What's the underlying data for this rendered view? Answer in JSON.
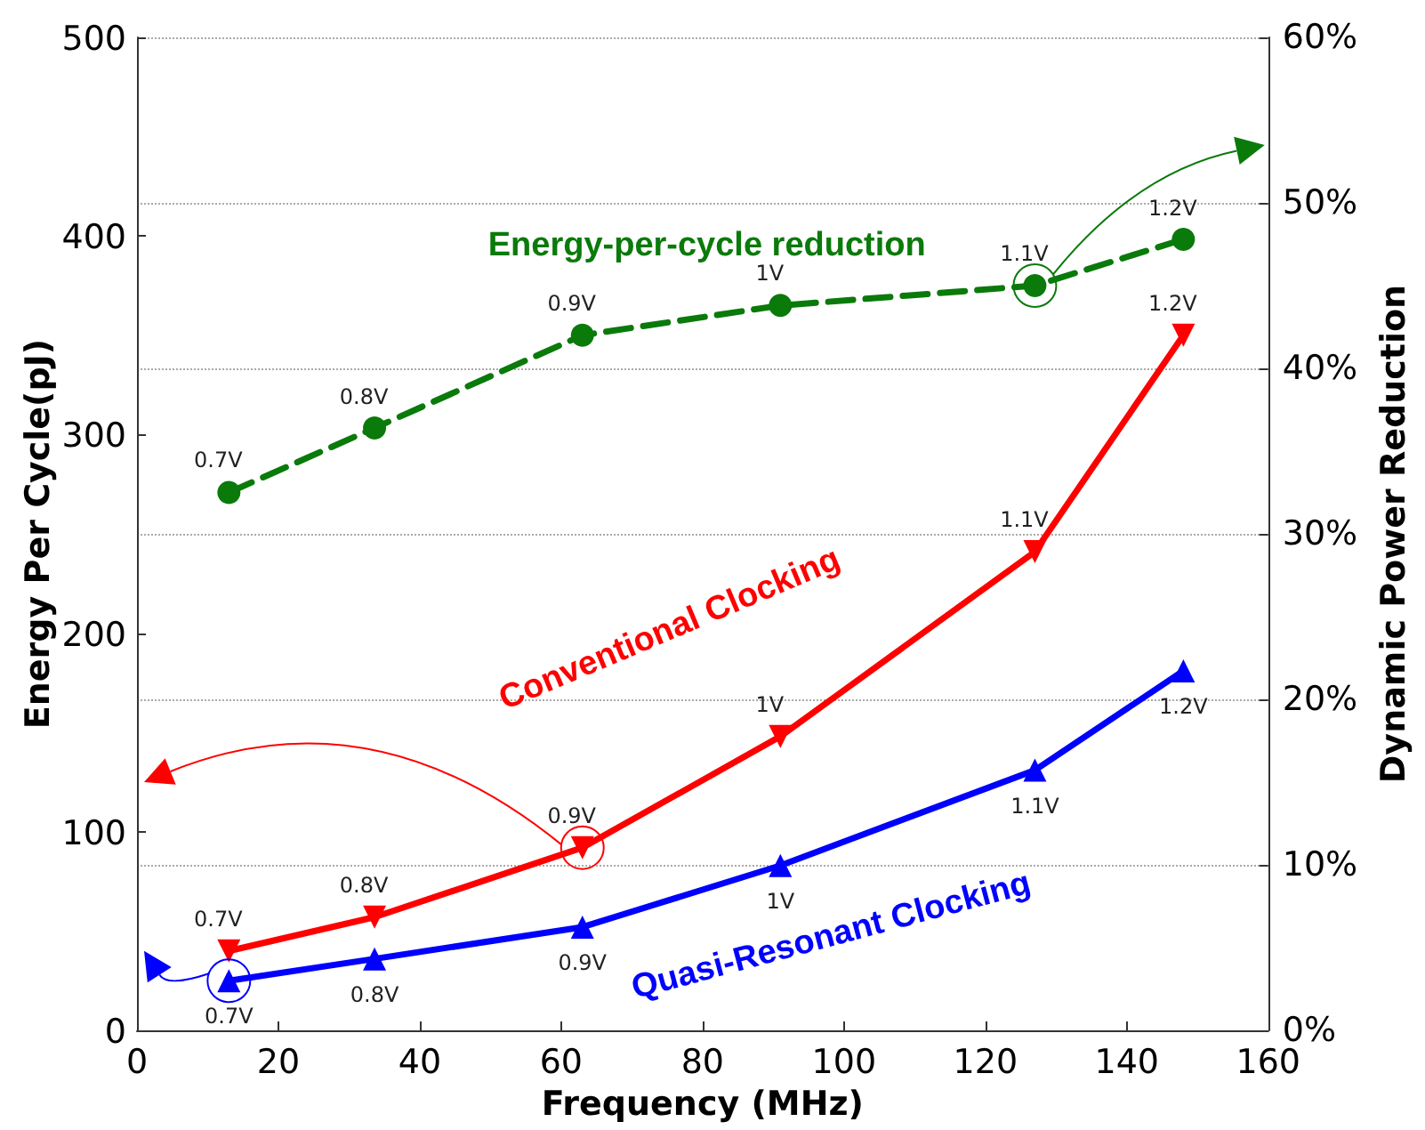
{
  "chart_data": {
    "type": "line",
    "xlabel": "Frequency (MHz)",
    "ylabel": "Energy Per Cycle(pJ)",
    "y2label": "Dynamic Power Reduction",
    "xlim": [
      0,
      160
    ],
    "xticks": [
      0,
      20,
      40,
      60,
      80,
      100,
      120,
      140,
      160
    ],
    "ylim": [
      0,
      500
    ],
    "yticks": [
      0,
      100,
      200,
      300,
      400,
      500
    ],
    "y2lim": [
      0,
      60
    ],
    "y2ticks": [
      {
        "value": 0,
        "label": "0%"
      },
      {
        "value": 10,
        "label": "10%"
      },
      {
        "value": 20,
        "label": "20%"
      },
      {
        "value": 30,
        "label": "30%"
      },
      {
        "value": 40,
        "label": "40%"
      },
      {
        "value": 50,
        "label": "50%"
      },
      {
        "value": 60,
        "label": "60%"
      }
    ],
    "grid": "y",
    "legend": false,
    "line_style": "solid",
    "annotations": [
      {
        "text": "0.7V",
        "x": 13,
        "y": 40
      },
      {
        "text": "0.8V",
        "x": 33.6,
        "y": 57
      },
      {
        "text": "0.9V",
        "x": 63,
        "y": 92
      },
      {
        "text": "1V",
        "x": 91,
        "y": 148
      },
      {
        "text": "1.1V",
        "x": 127,
        "y": 241
      },
      {
        "text": "1.2V",
        "x": 148,
        "y": 350
      },
      {
        "text": "0.7V",
        "x": 13,
        "y": 25
      },
      {
        "text": "0.8V",
        "x": 33.6,
        "y": 36
      },
      {
        "text": "0.9V",
        "x": 63,
        "y": 52
      },
      {
        "text": "1V",
        "x": 91,
        "y": 83
      },
      {
        "text": "1.1V",
        "x": 127,
        "y": 131
      },
      {
        "text": "1.2V",
        "x": 148,
        "y": 181
      },
      {
        "text": "0.7V",
        "x": 13,
        "y": 271
      },
      {
        "text": "0.8V",
        "x": 33.6,
        "y": 303
      },
      {
        "text": "0.9V",
        "x": 63,
        "y": 350
      },
      {
        "text": "1V",
        "x": 91,
        "y": 365
      },
      {
        "text": "1.1V",
        "x": 127,
        "y": 375
      },
      {
        "text": "1.2V",
        "x": 148,
        "y": 398
      }
    ],
    "series": [
      {
        "name": "Conventional Clocking",
        "color": "#ff0000",
        "marker": "triangle-down",
        "x": [
          13,
          33.6,
          63,
          91,
          127,
          148
        ],
        "values": [
          40,
          57,
          92,
          148,
          241,
          350
        ]
      },
      {
        "name": "Quasi-Resonant Clocking",
        "color": "#0000ff",
        "marker": "triangle",
        "x": [
          13,
          33.6,
          63,
          91,
          127,
          148
        ],
        "values": [
          25,
          36,
          52,
          83,
          131,
          181
        ]
      },
      {
        "name": "Energy-per-cycle reduction",
        "color": "#0a7a0a",
        "marker": "circle",
        "line_style": "dashed",
        "axis": "y2",
        "x": [
          13,
          33.6,
          63,
          91,
          127,
          148
        ],
        "values": [
          32.5,
          36.4,
          42,
          43.8,
          45,
          47.8
        ]
      }
    ]
  }
}
